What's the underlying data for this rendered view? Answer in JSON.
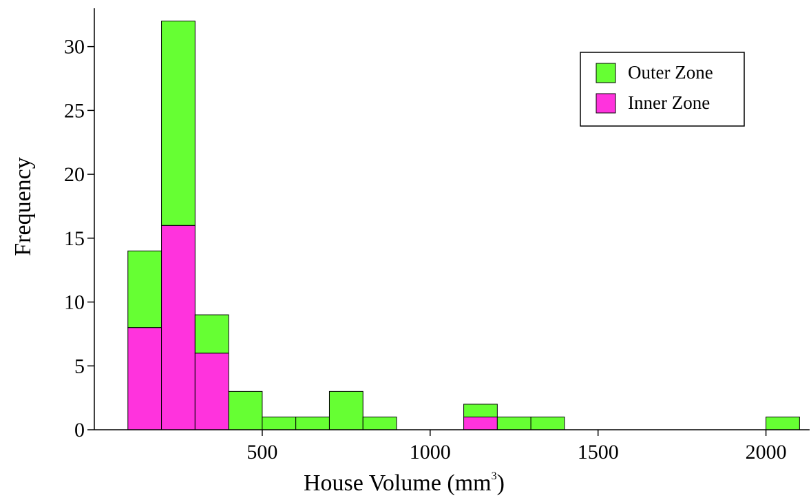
{
  "chart_data": {
    "type": "bar",
    "stacked": true,
    "bins": [
      [
        100,
        200
      ],
      [
        200,
        300
      ],
      [
        300,
        400
      ],
      [
        400,
        500
      ],
      [
        500,
        600
      ],
      [
        600,
        700
      ],
      [
        700,
        800
      ],
      [
        800,
        900
      ],
      [
        900,
        1000
      ],
      [
        1000,
        1100
      ],
      [
        1100,
        1200
      ],
      [
        1200,
        1300
      ],
      [
        1300,
        1400
      ],
      [
        1400,
        1500
      ],
      [
        1500,
        1600
      ],
      [
        1600,
        1700
      ],
      [
        1700,
        1800
      ],
      [
        1800,
        1900
      ],
      [
        1900,
        2000
      ],
      [
        2000,
        2100
      ]
    ],
    "series": [
      {
        "name": "Inner Zone",
        "color": "#ff33dd",
        "values": [
          8,
          16,
          6,
          0,
          0,
          0,
          0,
          0,
          0,
          0,
          1,
          0,
          0,
          0,
          0,
          0,
          0,
          0,
          0,
          0
        ]
      },
      {
        "name": "Outer Zone",
        "color": "#66ff33",
        "values": [
          6,
          16,
          3,
          3,
          1,
          1,
          3,
          1,
          0,
          0,
          1,
          1,
          1,
          0,
          0,
          0,
          0,
          0,
          0,
          1
        ]
      }
    ],
    "legend_order": [
      "Outer Zone",
      "Inner Zone"
    ],
    "legend_position": "top-right",
    "xlabel": "House Volume (mm",
    "xlabel_superscript": "3",
    "xlabel_suffix": ")",
    "ylabel": "Frequency",
    "xlim": [
      0,
      2130
    ],
    "ylim": [
      0,
      33
    ],
    "x_ticks": [
      500,
      1000,
      1500,
      2000
    ],
    "y_ticks": [
      0,
      5,
      10,
      15,
      20,
      25,
      30
    ],
    "grid": false
  }
}
